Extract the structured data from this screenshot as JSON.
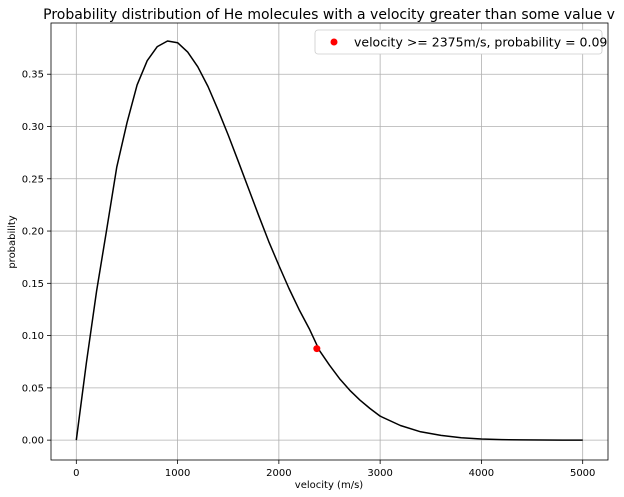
{
  "chart_data": {
    "type": "line",
    "title": "Probability distribution of He molecules with a velocity greater than some value v",
    "xlabel": "velocity (m/s)",
    "ylabel": "probability",
    "xlim": [
      -250,
      5250
    ],
    "ylim": [
      -0.019,
      0.399
    ],
    "grid": true,
    "legend_position": "top-right",
    "x_ticks": [
      0,
      1000,
      2000,
      3000,
      4000,
      5000
    ],
    "x_tick_labels": [
      "0",
      "1000",
      "2000",
      "3000",
      "4000",
      "5000"
    ],
    "y_ticks": [
      0.0,
      0.05,
      0.1,
      0.15,
      0.2,
      0.25,
      0.3,
      0.35
    ],
    "y_tick_labels": [
      "0.00",
      "0.05",
      "0.10",
      "0.15",
      "0.20",
      "0.25",
      "0.30",
      "0.35"
    ],
    "series": [
      {
        "type": "line",
        "color": "#000000",
        "x": [
          0,
          100,
          200,
          300,
          400,
          500,
          600,
          700,
          800,
          900,
          1000,
          1100,
          1200,
          1300,
          1400,
          1500,
          1600,
          1700,
          1800,
          1900,
          2000,
          2100,
          2200,
          2300,
          2400,
          2500,
          2600,
          2700,
          2800,
          2900,
          3000,
          3200,
          3400,
          3600,
          3800,
          4000,
          4200,
          4400,
          4600,
          4800,
          5000
        ],
        "y": [
          0.0,
          0.0741,
          0.1427,
          0.2015,
          0.2614,
          0.3036,
          0.3398,
          0.3629,
          0.3764,
          0.3818,
          0.3802,
          0.3712,
          0.3571,
          0.3383,
          0.3157,
          0.2919,
          0.2663,
          0.2407,
          0.2151,
          0.1901,
          0.167,
          0.145,
          0.1249,
          0.1067,
          0.0858,
          0.0717,
          0.0588,
          0.0477,
          0.0383,
          0.0303,
          0.023,
          0.014,
          0.008,
          0.0045,
          0.0023,
          0.0011,
          0.0005,
          0.0002,
          0.0001,
          0.0,
          0.0
        ]
      },
      {
        "type": "scatter",
        "name": "velocity >= 2375m/s, probability = 0.09",
        "color": "#ff0000",
        "x": [
          2375
        ],
        "y": [
          0.0875
        ]
      }
    ]
  }
}
